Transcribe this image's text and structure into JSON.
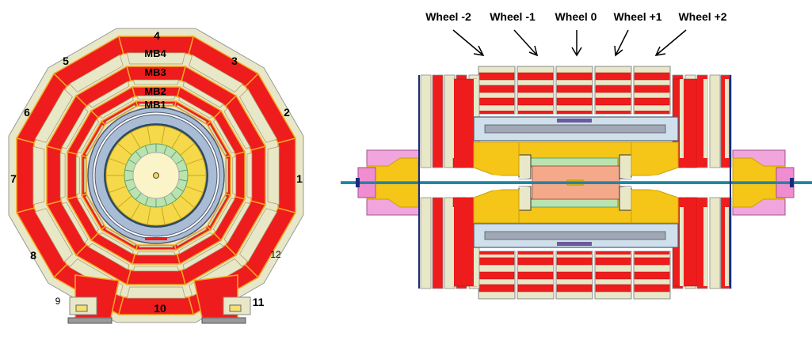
{
  "transverse_view": {
    "sector_labels": {
      "s1": "1",
      "s2": "2",
      "s3": "3",
      "s4": "4",
      "s5": "5",
      "s6": "6",
      "s7": "7",
      "s8": "8",
      "s9": "9",
      "s10": "10",
      "s11": "11",
      "s12": "12"
    },
    "station_labels": {
      "mb1": "MB1",
      "mb2": "MB2",
      "mb3": "MB3",
      "mb4": "MB4"
    }
  },
  "longitudinal_view": {
    "wheel_labels": {
      "wm2": "Wheel -2",
      "wm1": "Wheel -1",
      "w0": "Wheel 0",
      "wp1": "Wheel +1",
      "wp2": "Wheel +2"
    }
  },
  "colors": {
    "iron_red": "#ee1c1c",
    "chamber_cream": "#e8e8c8",
    "border_orange": "#f5a623",
    "yellow": "#f5c518",
    "pink": "#f08cd0",
    "steel_blue": "#a9bcd6",
    "beam_cyan": "#2aa6c8",
    "dark_blue": "#1a2a7a"
  }
}
